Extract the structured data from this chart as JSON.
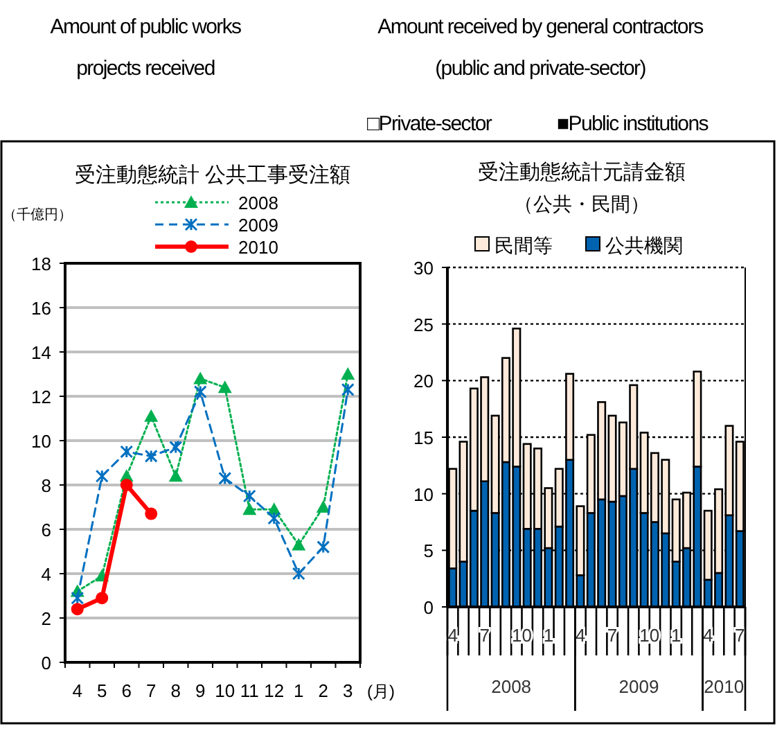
{
  "chart_data": [
    {
      "type": "line",
      "title": "受注動態統計 公共工事受注額",
      "ylabel": "（千億円）",
      "xlabel": "(月)",
      "annotations": [
        "Amount of public works",
        "projects received"
      ],
      "categories": [
        "4",
        "5",
        "6",
        "7",
        "8",
        "9",
        "10",
        "11",
        "12",
        "1",
        "2",
        "3"
      ],
      "series": [
        {
          "name": "2008",
          "color": "#00b050",
          "marker": "triangle",
          "line_style": "dotted",
          "values": [
            3.2,
            3.9,
            8.4,
            11.1,
            8.4,
            12.8,
            12.4,
            6.9,
            6.9,
            5.3,
            7.0,
            13.0
          ]
        },
        {
          "name": "2009",
          "color": "#0070c0",
          "marker": "cross",
          "line_style": "dashed",
          "values": [
            2.9,
            8.4,
            9.5,
            9.3,
            9.7,
            12.2,
            8.3,
            7.5,
            6.5,
            4.0,
            5.2,
            12.3
          ]
        },
        {
          "name": "2010",
          "color": "#ff0000",
          "marker": "circle",
          "line_style": "solid",
          "values": [
            2.4,
            2.9,
            8.0,
            6.7,
            null,
            null,
            null,
            null,
            null,
            null,
            null,
            null
          ]
        }
      ],
      "ylim": [
        0,
        18
      ],
      "yticks": [
        0,
        2,
        4,
        6,
        8,
        10,
        12,
        14,
        16,
        18
      ],
      "grid": "y",
      "legend": "top"
    },
    {
      "type": "bar",
      "stacked": true,
      "title": "受注動態統計元請金額",
      "subtitle": "（公共・民間）",
      "annotations": [
        "Amount received by general contractors",
        "(public and private-sector)",
        "□Private-sector",
        "■Public institutions",
        "2008",
        "2009",
        "2010"
      ],
      "categories": [
        "4",
        null,
        null,
        "7",
        null,
        null,
        "10",
        null,
        null,
        "1",
        null,
        null,
        "4",
        null,
        null,
        "7",
        null,
        null,
        "10",
        null,
        null,
        "1",
        null,
        null,
        "4",
        null,
        null,
        "7"
      ],
      "series": [
        {
          "name": "公共機関",
          "color": "#0063b0",
          "values": [
            3.4,
            4.0,
            8.5,
            11.1,
            8.3,
            12.8,
            12.4,
            6.9,
            6.9,
            5.2,
            7.1,
            13.0,
            2.8,
            8.3,
            9.5,
            9.3,
            9.8,
            12.2,
            8.3,
            7.5,
            6.5,
            4.0,
            5.2,
            12.4,
            2.4,
            3.0,
            8.1,
            6.7
          ]
        },
        {
          "name": "民間等",
          "color": "#fdeadb",
          "values": [
            8.8,
            10.6,
            10.8,
            9.2,
            8.6,
            9.2,
            12.2,
            7.5,
            7.1,
            5.3,
            5.1,
            7.6,
            6.1,
            6.9,
            8.6,
            7.6,
            6.5,
            7.4,
            7.1,
            6.1,
            6.5,
            5.5,
            4.9,
            8.4,
            6.1,
            7.4,
            7.9,
            7.9
          ]
        }
      ],
      "ylim": [
        0,
        30
      ],
      "yticks": [
        0,
        5,
        10,
        15,
        20,
        25,
        30
      ],
      "grid": "y",
      "legend": "top"
    }
  ]
}
